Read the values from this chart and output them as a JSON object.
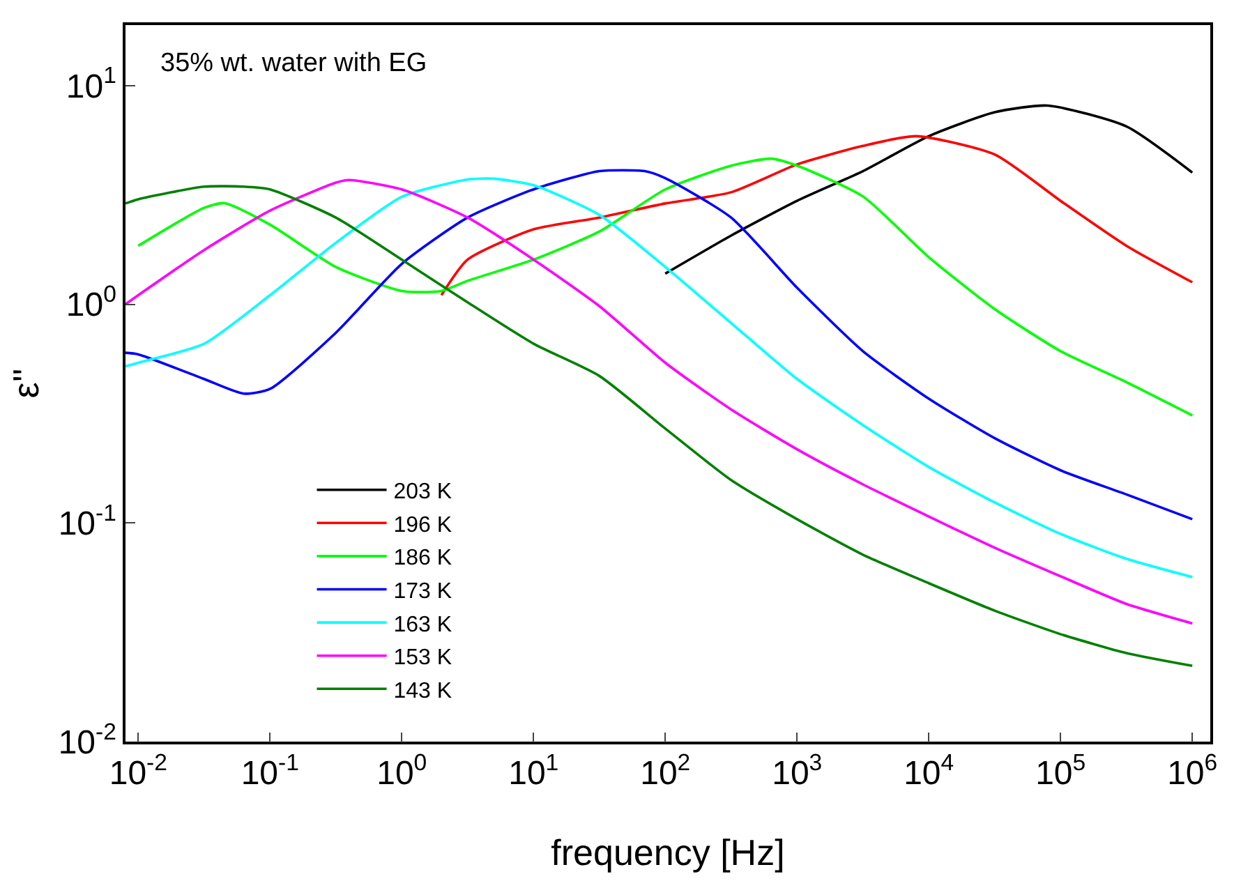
{
  "chart_data": {
    "type": "line",
    "xlabel": "frequency [Hz]",
    "ylabel": "ε''",
    "annotations": [
      "35% wt. water with EG"
    ],
    "log": "xy",
    "grid": false,
    "legend": "bottom left",
    "line_style": "solid",
    "marker": "none",
    "xlim": [
      0.008,
      1370000
    ],
    "ylim": [
      0.01,
      18.9
    ],
    "xticks": [
      {
        "value": 0.01,
        "label": "10$^{-2}$"
      },
      {
        "value": 0.1,
        "label": "10$^{-1}$"
      },
      {
        "value": 1,
        "label": "10$^{0}$"
      },
      {
        "value": 10,
        "label": "10$^{1}$"
      },
      {
        "value": 100,
        "label": "10$^{2}$"
      },
      {
        "value": 1000,
        "label": "10$^{3}$"
      },
      {
        "value": 10000,
        "label": "10$^{4}$"
      },
      {
        "value": 100000,
        "label": "10$^{5}$"
      },
      {
        "value": 1000000,
        "label": "10$^{6}$"
      }
    ],
    "yticks": [
      {
        "value": 0.01,
        "label": "10$^{-2}$"
      },
      {
        "value": 0.1,
        "label": "10$^{-1}$"
      },
      {
        "value": 1,
        "label": "10$^{0}$"
      },
      {
        "value": 10,
        "label": "10$^{1}$"
      }
    ],
    "series": [
      {
        "name": "203 K",
        "color": "#000000",
        "x": [
          100,
          316,
          1000,
          3162,
          10000,
          31623,
          80000,
          316228,
          1000000
        ],
        "values": [
          1.38,
          2.06,
          2.97,
          4.06,
          5.87,
          7.55,
          8.1,
          6.5,
          4.0
        ]
      },
      {
        "name": "196 K",
        "color": "#ff0000",
        "x": [
          2,
          3.16,
          10,
          31.6,
          100,
          316,
          1000,
          3162,
          8000,
          31623,
          100000,
          316228,
          1000000
        ],
        "values": [
          1.1,
          1.6,
          2.2,
          2.49,
          2.89,
          3.25,
          4.36,
          5.3,
          5.87,
          4.84,
          2.97,
          1.85,
          1.26
        ]
      },
      {
        "name": "186 K",
        "color": "#00ff00",
        "x": [
          0.01,
          0.0316,
          0.045,
          0.1,
          0.316,
          1,
          2,
          3.16,
          10,
          31.6,
          100,
          316,
          630,
          1000,
          3162,
          10000,
          31623,
          100000,
          316228,
          1000000
        ],
        "values": [
          1.85,
          2.76,
          2.9,
          2.31,
          1.48,
          1.15,
          1.15,
          1.28,
          1.6,
          2.15,
          3.35,
          4.3,
          4.63,
          4.3,
          3.11,
          1.64,
          0.95,
          0.61,
          0.44,
          0.31
        ]
      },
      {
        "name": "173 K",
        "color": "#0000ff",
        "x": [
          0.008,
          0.01,
          0.0316,
          0.063,
          0.1,
          0.316,
          1,
          3.16,
          10,
          31.6,
          70,
          100,
          316,
          1000,
          3162,
          10000,
          31623,
          100000,
          316228,
          1000000
        ],
        "values": [
          0.6,
          0.59,
          0.455,
          0.39,
          0.41,
          0.74,
          1.53,
          2.49,
          3.35,
          4.06,
          4.06,
          3.77,
          2.49,
          1.19,
          0.61,
          0.37,
          0.244,
          0.174,
          0.135,
          0.104
        ]
      },
      {
        "name": "163 K",
        "color": "#00ffff",
        "x": [
          0.008,
          0.01,
          0.0316,
          0.1,
          0.316,
          1,
          3.16,
          5,
          10,
          31.6,
          100,
          316,
          1000,
          3162,
          10000,
          31623,
          100000,
          316228,
          1000000
        ],
        "values": [
          0.52,
          0.54,
          0.66,
          1.1,
          1.91,
          3.1,
          3.72,
          3.75,
          3.5,
          2.56,
          1.48,
          0.82,
          0.455,
          0.28,
          0.18,
          0.124,
          0.089,
          0.0685,
          0.0565
        ]
      },
      {
        "name": "153 K",
        "color": "#ff00ff",
        "x": [
          0.008,
          0.01,
          0.0316,
          0.1,
          0.316,
          0.4,
          1,
          3.16,
          10,
          31.6,
          100,
          316,
          1000,
          3162,
          10000,
          31623,
          100000,
          316228,
          1000000
        ],
        "values": [
          1.0,
          1.1,
          1.77,
          2.68,
          3.6,
          3.7,
          3.35,
          2.49,
          1.6,
          0.98,
          0.54,
          0.33,
          0.217,
          0.15,
          0.107,
          0.077,
          0.057,
          0.0426,
          0.0347
        ]
      },
      {
        "name": "143 K",
        "color": "#008000",
        "x": [
          0.008,
          0.01,
          0.0316,
          0.063,
          0.1,
          0.316,
          1,
          3.16,
          10,
          31.6,
          100,
          316,
          1000,
          3162,
          10000,
          31623,
          100000,
          316228,
          1000000
        ],
        "values": [
          2.89,
          3.02,
          3.45,
          3.45,
          3.35,
          2.49,
          1.6,
          1.02,
          0.66,
          0.47,
          0.27,
          0.157,
          0.104,
          0.0716,
          0.053,
          0.0397,
          0.031,
          0.0254,
          0.0222
        ]
      }
    ]
  }
}
